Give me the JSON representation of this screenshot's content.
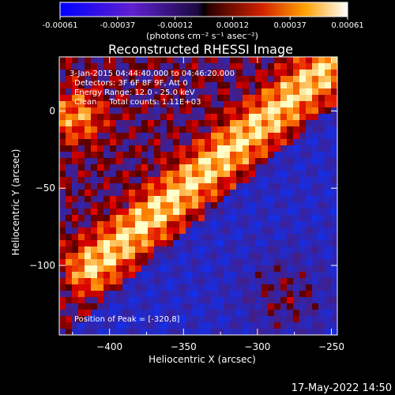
{
  "colorbar": {
    "ticks": [
      "-0.00061",
      "-0.00037",
      "-0.00012",
      "0.00012",
      "0.00037",
      "0.00061"
    ],
    "units_label": "(photons cm⁻² s⁻¹ asec⁻²)",
    "min": -0.00061,
    "max": 0.00061
  },
  "annotations": {
    "time_range": "3-Jan-2015 04:44:40.000 to 04:46:20.000",
    "detectors": "Detectors: 3F 6F 8F 9F, Att 0",
    "energy": "Energy Range: 12.0 - 25.0 keV",
    "clean": "Clean     Total counts: 1.11E+03",
    "peak": "Position of Peak = [-320,8]"
  },
  "footer": {
    "date": "17-May-2022 14:50"
  },
  "chart_data": {
    "type": "heatmap",
    "title": "Reconstructed RHESSI Image",
    "xlabel": "Heliocentric X (arcsec)",
    "ylabel": "Heliocentric Y (arcsec)",
    "xlim": [
      -434,
      -246
    ],
    "ylim": [
      -145,
      35
    ],
    "xticks": [
      -400,
      -350,
      -300,
      -250
    ],
    "yticks": [
      0,
      -50,
      -100
    ],
    "colormap": "hot-cold",
    "peak_position": [
      -320,
      8
    ],
    "features": [
      {
        "name": "bright ridge",
        "description": "diagonal band of positive flux from upper-right to lower-left"
      },
      {
        "name": "negative region",
        "description": "blue/purple area on the lower-right side"
      }
    ]
  }
}
